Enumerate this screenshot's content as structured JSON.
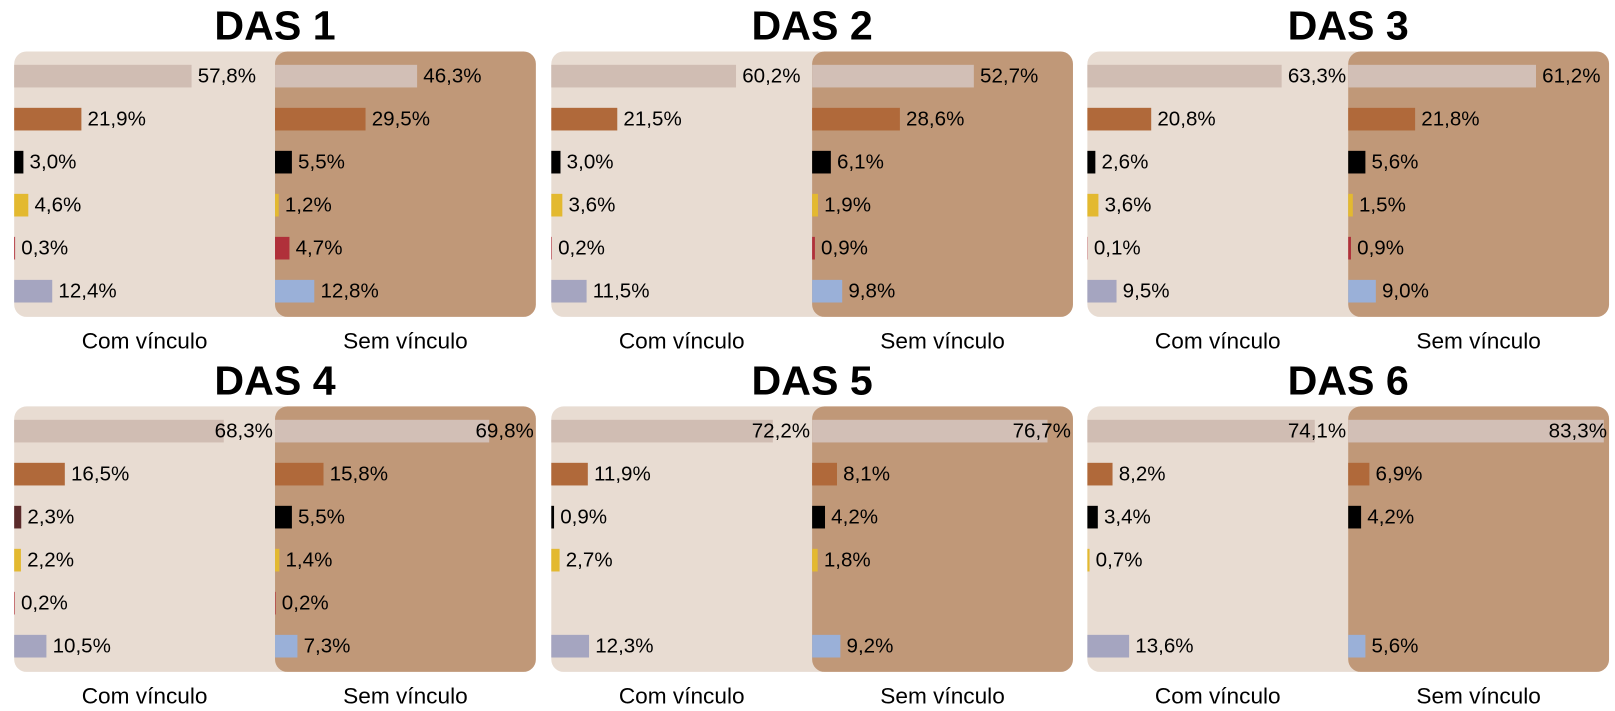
{
  "chart_data": [
    {
      "type": "bar",
      "title": "DAS 1",
      "categories": [
        null,
        null,
        null,
        null,
        null,
        null
      ],
      "xlim": [
        0,
        85
      ],
      "series": [
        {
          "name": "Com vínculo",
          "colors": [
            "#d0bdb3",
            "#b0693a",
            "#000000",
            "#e3b930",
            "#b0303a",
            "#a5a5c0"
          ],
          "values": [
            57.8,
            21.9,
            3.0,
            4.6,
            0.3,
            12.4
          ],
          "value_labels": [
            "57,8%",
            "21,9%",
            "3,0%",
            "4,6%",
            "0,3%",
            "12,4%"
          ]
        },
        {
          "name": "Sem vínculo",
          "colors": [
            "#d2bfb6",
            "#b0693a",
            "#000000",
            "#e3b930",
            "#b0303a",
            "#9ab0d8"
          ],
          "values": [
            46.3,
            29.5,
            5.5,
            1.2,
            4.7,
            12.8
          ],
          "value_labels": [
            "46,3%",
            "29,5%",
            "5,5%",
            "1,2%",
            "4,7%",
            "12,8%"
          ]
        }
      ]
    },
    {
      "type": "bar",
      "title": "DAS 2",
      "categories": [
        null,
        null,
        null,
        null,
        null,
        null
      ],
      "xlim": [
        0,
        85
      ],
      "series": [
        {
          "name": "Com vínculo",
          "colors": [
            "#d0bdb3",
            "#b0693a",
            "#000000",
            "#e3b930",
            "#b0303a",
            "#a5a5c0"
          ],
          "values": [
            60.2,
            21.5,
            3.0,
            3.6,
            0.2,
            11.5
          ],
          "value_labels": [
            "60,2%",
            "21,5%",
            "3,0%",
            "3,6%",
            "0,2%",
            "11,5%"
          ]
        },
        {
          "name": "Sem vínculo",
          "colors": [
            "#d2bfb6",
            "#b0693a",
            "#000000",
            "#e3b930",
            "#b0303a",
            "#9ab0d8"
          ],
          "values": [
            52.7,
            28.6,
            6.1,
            1.9,
            0.9,
            9.8
          ],
          "value_labels": [
            "52,7%",
            "28,6%",
            "6,1%",
            "1,9%",
            "0,9%",
            "9,8%"
          ]
        }
      ]
    },
    {
      "type": "bar",
      "title": "DAS 3",
      "categories": [
        null,
        null,
        null,
        null,
        null,
        null
      ],
      "xlim": [
        0,
        85
      ],
      "series": [
        {
          "name": "Com vínculo",
          "colors": [
            "#d0bdb3",
            "#b0693a",
            "#000000",
            "#e3b930",
            "#b0303a",
            "#a5a5c0"
          ],
          "values": [
            63.3,
            20.8,
            2.6,
            3.6,
            0.1,
            9.5
          ],
          "value_labels": [
            "63,3%",
            "20,8%",
            "2,6%",
            "3,6%",
            "0,1%",
            "9,5%"
          ]
        },
        {
          "name": "Sem vínculo",
          "colors": [
            "#d2bfb6",
            "#b0693a",
            "#000000",
            "#e3b930",
            "#b0303a",
            "#9ab0d8"
          ],
          "values": [
            61.2,
            21.8,
            5.6,
            1.5,
            0.9,
            9.0
          ],
          "value_labels": [
            "61,2%",
            "21,8%",
            "5,6%",
            "1,5%",
            "0,9%",
            "9,0%"
          ]
        }
      ]
    },
    {
      "type": "bar",
      "title": "DAS 4",
      "categories": [
        null,
        null,
        null,
        null,
        null,
        null
      ],
      "xlim": [
        0,
        85
      ],
      "series": [
        {
          "name": "Com vínculo",
          "colors": [
            "#d0bdb3",
            "#b0693a",
            "#5a2a2a",
            "#e3b930",
            "#b0303a",
            "#a5a5c0"
          ],
          "values": [
            68.3,
            16.5,
            2.3,
            2.2,
            0.2,
            10.5
          ],
          "value_labels": [
            "68,3%",
            "16,5%",
            "2,3%",
            "2,2%",
            "0,2%",
            "10,5%"
          ]
        },
        {
          "name": "Sem vínculo",
          "colors": [
            "#d2bfb6",
            "#b0693a",
            "#000000",
            "#e3b930",
            "#b0303a",
            "#9ab0d8"
          ],
          "values": [
            69.8,
            15.8,
            5.5,
            1.4,
            0.2,
            7.3
          ],
          "value_labels": [
            "69,8%",
            "15,8%",
            "5,5%",
            "1,4%",
            "0,2%",
            "7,3%"
          ]
        }
      ]
    },
    {
      "type": "bar",
      "title": "DAS 5",
      "categories": [
        null,
        null,
        null,
        null,
        null,
        null
      ],
      "xlim": [
        0,
        85
      ],
      "series": [
        {
          "name": "Com vínculo",
          "colors": [
            "#d0bdb3",
            "#b0693a",
            "#000000",
            "#e3b930",
            "#b0303a",
            "#a5a5c0"
          ],
          "values": [
            72.2,
            11.9,
            0.9,
            2.7,
            null,
            12.3
          ],
          "value_labels": [
            "72,2%",
            "11,9%",
            "0,9%",
            "2,7%",
            null,
            "12,3%"
          ]
        },
        {
          "name": "Sem vínculo",
          "colors": [
            "#d2bfb6",
            "#b0693a",
            "#000000",
            "#e3b930",
            "#b0303a",
            "#9ab0d8"
          ],
          "values": [
            76.7,
            8.1,
            4.2,
            1.8,
            null,
            9.2
          ],
          "value_labels": [
            "76,7%",
            "8,1%",
            "4,2%",
            "1,8%",
            null,
            "9,2%"
          ]
        }
      ]
    },
    {
      "type": "bar",
      "title": "DAS 6",
      "categories": [
        null,
        null,
        null,
        null,
        null,
        null
      ],
      "xlim": [
        0,
        85
      ],
      "series": [
        {
          "name": "Com vínculo",
          "colors": [
            "#d0bdb3",
            "#b0693a",
            "#000000",
            "#e3b930",
            "#b0303a",
            "#a5a5c0"
          ],
          "values": [
            74.1,
            8.2,
            3.4,
            0.7,
            null,
            13.6
          ],
          "value_labels": [
            "74,1%",
            "8,2%",
            "3,4%",
            "0,7%",
            null,
            "13,6%"
          ]
        },
        {
          "name": "Sem vínculo",
          "colors": [
            "#d2bfb6",
            "#b0693a",
            "#000000",
            "#e3b930",
            "#b0303a",
            "#9ab0d8"
          ],
          "values": [
            83.3,
            6.9,
            4.2,
            null,
            null,
            5.6
          ],
          "value_labels": [
            "83,3%",
            "6,9%",
            "4,2%",
            null,
            null,
            "5,6%"
          ]
        }
      ]
    }
  ]
}
